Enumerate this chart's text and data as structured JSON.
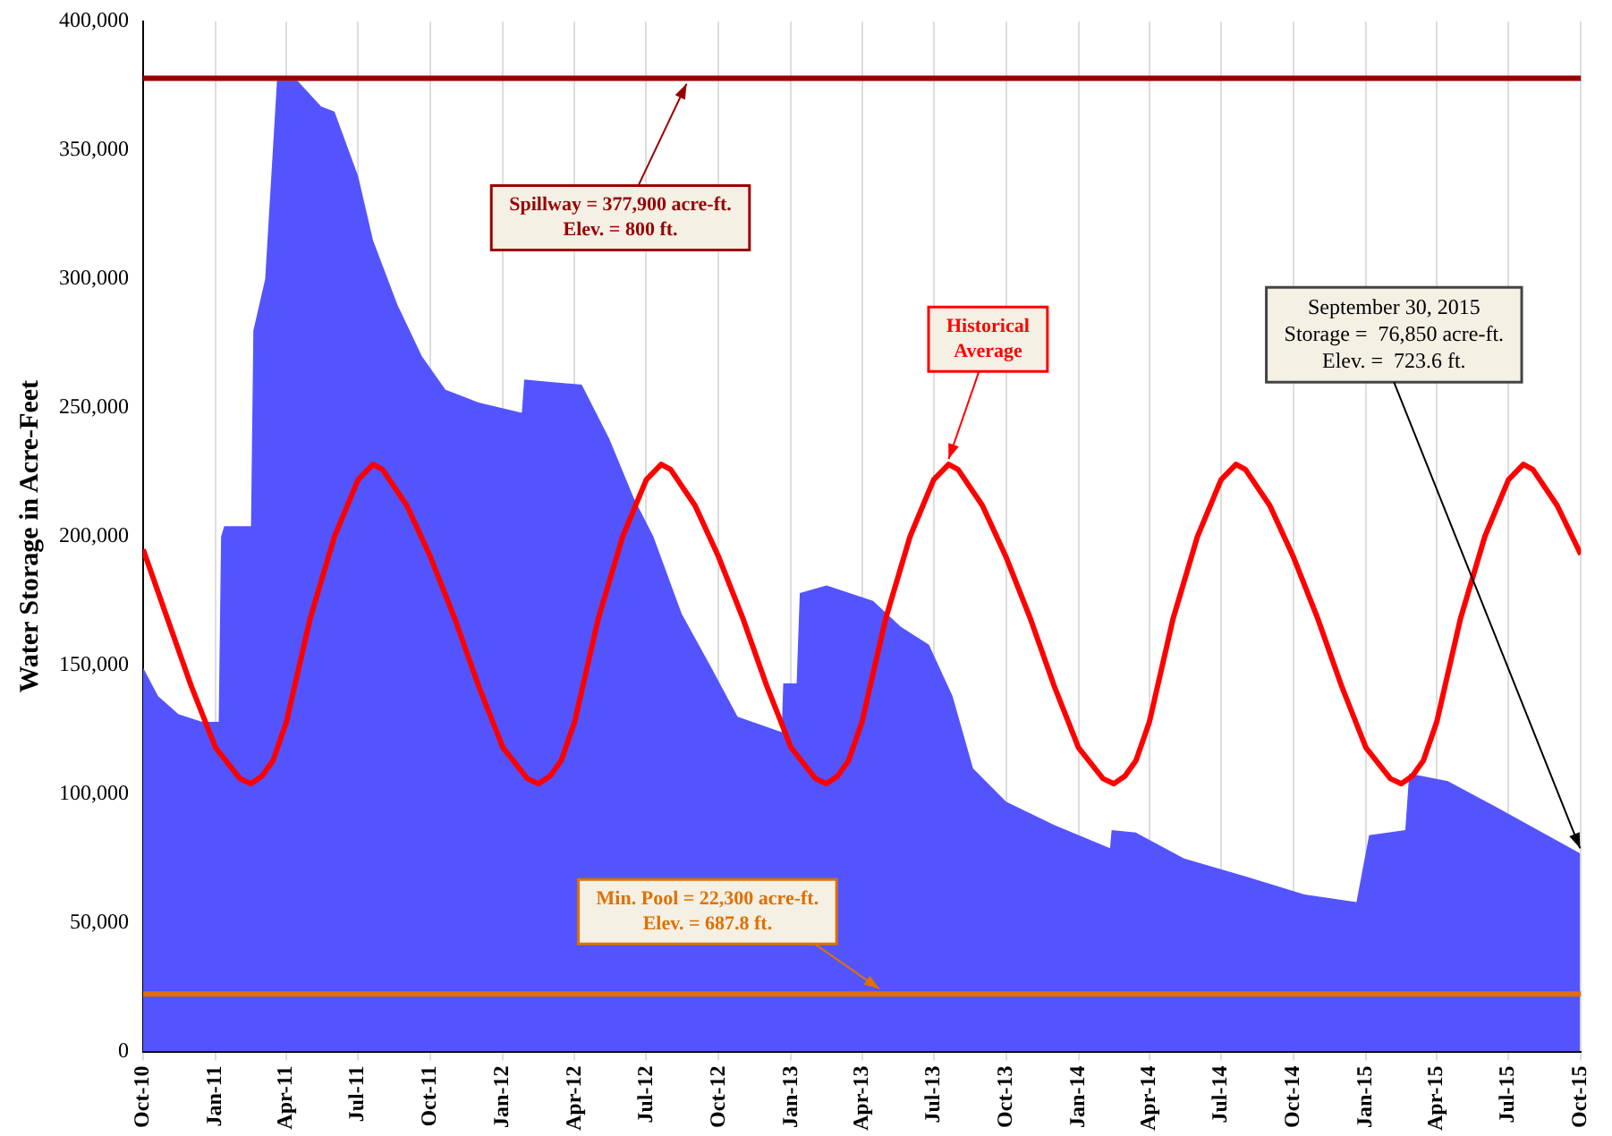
{
  "chart_data": {
    "type": "area",
    "ylabel": "Water Storage in Acre-Feet",
    "xlim": [
      "2010-10-01",
      "2015-10-01"
    ],
    "xticks": [
      {
        "value": "2010-10-01",
        "label": "Oct-10"
      },
      {
        "value": "2011-01-01",
        "label": "Jan-11"
      },
      {
        "value": "2011-04-01",
        "label": "Apr-11"
      },
      {
        "value": "2011-07-01",
        "label": "Jul-11"
      },
      {
        "value": "2011-10-01",
        "label": "Oct-11"
      },
      {
        "value": "2012-01-01",
        "label": "Jan-12"
      },
      {
        "value": "2012-04-01",
        "label": "Apr-12"
      },
      {
        "value": "2012-07-01",
        "label": "Jul-12"
      },
      {
        "value": "2012-10-01",
        "label": "Oct-12"
      },
      {
        "value": "2013-01-01",
        "label": "Jan-13"
      },
      {
        "value": "2013-04-01",
        "label": "Apr-13"
      },
      {
        "value": "2013-07-01",
        "label": "Jul-13"
      },
      {
        "value": "2013-10-01",
        "label": "Oct-13"
      },
      {
        "value": "2014-01-01",
        "label": "Jan-14"
      },
      {
        "value": "2014-04-01",
        "label": "Apr-14"
      },
      {
        "value": "2014-07-01",
        "label": "Jul-14"
      },
      {
        "value": "2014-10-01",
        "label": "Oct-14"
      },
      {
        "value": "2015-01-01",
        "label": "Jan-15"
      },
      {
        "value": "2015-04-01",
        "label": "Apr-15"
      },
      {
        "value": "2015-07-01",
        "label": "Jul-15"
      },
      {
        "value": "2015-10-01",
        "label": "Oct-15"
      }
    ],
    "ylim": [
      0,
      400000
    ],
    "yticks": [
      0,
      {
        "value": 50000,
        "label": "50,000"
      },
      {
        "value": 100000,
        "label": "100,000"
      },
      {
        "value": 150000,
        "label": "150,000"
      },
      {
        "value": 200000,
        "label": "200,000"
      },
      {
        "value": 250000,
        "label": "250,000"
      },
      {
        "value": 300000,
        "label": "300,000"
      },
      {
        "value": 350000,
        "label": "350,000"
      },
      {
        "value": 400000,
        "label": "400,000"
      }
    ],
    "grid": "x",
    "series": [
      {
        "color": "#5454ff",
        "x": [
          "2010-10-01",
          "2010-10-20",
          "2010-11-15",
          "2010-12-15",
          "2011-01-05",
          "2011-01-08",
          "2011-01-12",
          "2011-02-15",
          "2011-02-18",
          "2011-03-05",
          "2011-03-20",
          "2011-04-15",
          "2011-05-15",
          "2011-06-01",
          "2011-07-01",
          "2011-07-20",
          "2011-08-20",
          "2011-09-20",
          "2011-10-20",
          "2011-12-01",
          "2012-01-25",
          "2012-01-28",
          "2012-03-01",
          "2012-04-10",
          "2012-05-15",
          "2012-06-15",
          "2012-07-10",
          "2012-08-15",
          "2012-09-20",
          "2012-10-25",
          "2012-12-20",
          "2012-12-22",
          "2013-01-08",
          "2013-01-12",
          "2013-02-15",
          "2013-04-15",
          "2013-05-20",
          "2013-06-25",
          "2013-07-25",
          "2013-08-20",
          "2013-10-01",
          "2013-12-01",
          "2014-02-10",
          "2014-02-12",
          "2014-03-15",
          "2014-05-15",
          "2014-08-01",
          "2014-10-15",
          "2014-12-20",
          "2015-01-05",
          "2015-02-20",
          "2015-02-25",
          "2015-04-15",
          "2015-06-15",
          "2015-09-30"
        ],
        "values": [
          149000,
          138000,
          131000,
          128000,
          128000,
          200000,
          204000,
          204000,
          280000,
          300000,
          377000,
          377000,
          367000,
          365000,
          340000,
          315000,
          290000,
          270000,
          257000,
          252000,
          248000,
          261000,
          260000,
          259000,
          238000,
          215000,
          200000,
          170000,
          150000,
          130000,
          124000,
          143000,
          143000,
          178000,
          181000,
          175000,
          165000,
          158000,
          138000,
          110000,
          97000,
          88000,
          79000,
          86000,
          85000,
          75000,
          68000,
          61000,
          58000,
          84000,
          86000,
          108000,
          105000,
          95000,
          77000
        ]
      },
      {
        "type": "line",
        "color": "#ff0000",
        "x": [
          "2010-10-01",
          "2010-11-01",
          "2010-12-01",
          "2011-01-01",
          "2011-02-01",
          "2011-02-15",
          "2011-03-01",
          "2011-03-15",
          "2011-04-01",
          "2011-05-01",
          "2011-06-01",
          "2011-07-01",
          "2011-07-20",
          "2011-08-01",
          "2011-09-01",
          "2011-10-01",
          "2011-11-01",
          "2011-12-01",
          "2012-01-01",
          "2012-02-01",
          "2012-02-15",
          "2012-03-01",
          "2012-03-15",
          "2012-04-01",
          "2012-05-01",
          "2012-06-01",
          "2012-07-01",
          "2012-07-20",
          "2012-08-01",
          "2012-09-01",
          "2012-10-01",
          "2012-11-01",
          "2012-12-01",
          "2013-01-01",
          "2013-02-01",
          "2013-02-15",
          "2013-03-01",
          "2013-03-15",
          "2013-04-01",
          "2013-05-01",
          "2013-06-01",
          "2013-07-01",
          "2013-07-20",
          "2013-08-01",
          "2013-09-01",
          "2013-10-01",
          "2013-11-01",
          "2013-12-01",
          "2014-01-01",
          "2014-02-01",
          "2014-02-15",
          "2014-03-01",
          "2014-03-15",
          "2014-04-01",
          "2014-05-01",
          "2014-06-01",
          "2014-07-01",
          "2014-07-20",
          "2014-08-01",
          "2014-09-01",
          "2014-10-01",
          "2014-11-01",
          "2014-12-01",
          "2015-01-01",
          "2015-02-01",
          "2015-02-15",
          "2015-03-01",
          "2015-03-15",
          "2015-04-01",
          "2015-05-01",
          "2015-06-01",
          "2015-07-01",
          "2015-07-20",
          "2015-08-01",
          "2015-09-01",
          "2015-10-01"
        ],
        "values": [
          195000,
          168000,
          142000,
          118000,
          106000,
          104000,
          107000,
          113000,
          128000,
          168000,
          200000,
          222000,
          228000,
          226000,
          212000,
          192000,
          168000,
          142000,
          118000,
          106000,
          104000,
          107000,
          113000,
          128000,
          168000,
          200000,
          222000,
          228000,
          226000,
          212000,
          192000,
          168000,
          142000,
          118000,
          106000,
          104000,
          107000,
          113000,
          128000,
          168000,
          200000,
          222000,
          228000,
          226000,
          212000,
          192000,
          168000,
          142000,
          118000,
          106000,
          104000,
          107000,
          113000,
          128000,
          168000,
          200000,
          222000,
          228000,
          226000,
          212000,
          192000,
          168000,
          142000,
          118000,
          106000,
          104000,
          107000,
          113000,
          128000,
          168000,
          200000,
          222000,
          228000,
          226000,
          212000,
          193000
        ]
      }
    ],
    "ref_lines": [
      {
        "axis": "y",
        "value": 377900,
        "label": "Spillway = 377,900 acre-ft.\nElev. = 800 ft.",
        "color": "#990000"
      },
      {
        "axis": "y",
        "value": 22300,
        "label": "Min. Pool = 22,300 acre-ft.\nElev. = 687.8 ft.",
        "color": "#e07000"
      }
    ],
    "annotations": [
      {
        "text": "Historical\nAverage",
        "x": "2013-07-20",
        "y": 228000
      },
      {
        "text": "September 30, 2015\nStorage =  76,850 acre-ft.\nElev. =  723.6 ft.",
        "x": "2015-09-30",
        "y": 76850
      }
    ]
  }
}
